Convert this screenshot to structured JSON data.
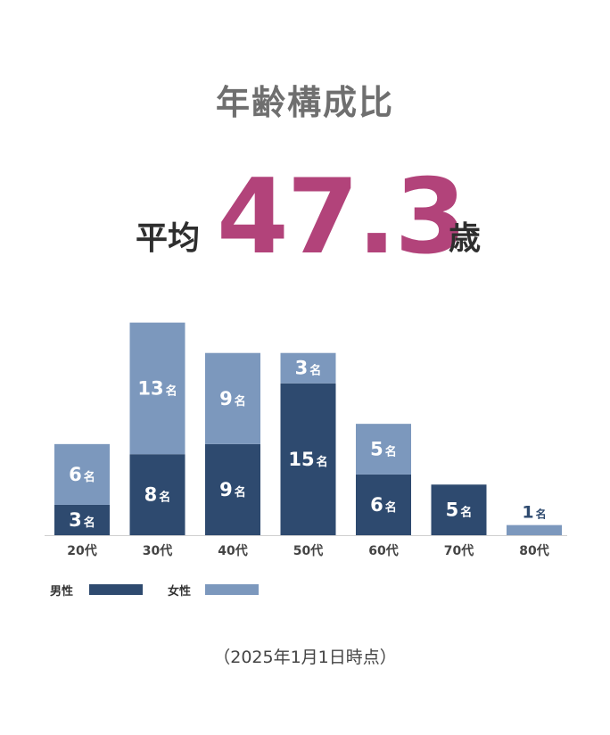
{
  "title": "年齢構成比",
  "average": {
    "prefix": "平均",
    "value": "47.3",
    "suffix": "歳"
  },
  "legend": [
    {
      "label": "男性",
      "color": "#2e4a6f"
    },
    {
      "label": "女性",
      "color": "#7c98bd"
    }
  ],
  "note": "（2025年1月1日時点）",
  "unit": "名",
  "chart_data": {
    "type": "bar",
    "stacked": true,
    "categories": [
      "20代",
      "30代",
      "40代",
      "50代",
      "60代",
      "70代",
      "80代"
    ],
    "series": [
      {
        "name": "男性",
        "values": [
          3,
          8,
          9,
          15,
          6,
          5,
          0
        ],
        "color": "#2e4a6f"
      },
      {
        "name": "女性",
        "values": [
          6,
          13,
          9,
          3,
          5,
          0,
          1
        ],
        "color": "#7c98bd"
      }
    ],
    "ylim": [
      0,
      21
    ]
  }
}
